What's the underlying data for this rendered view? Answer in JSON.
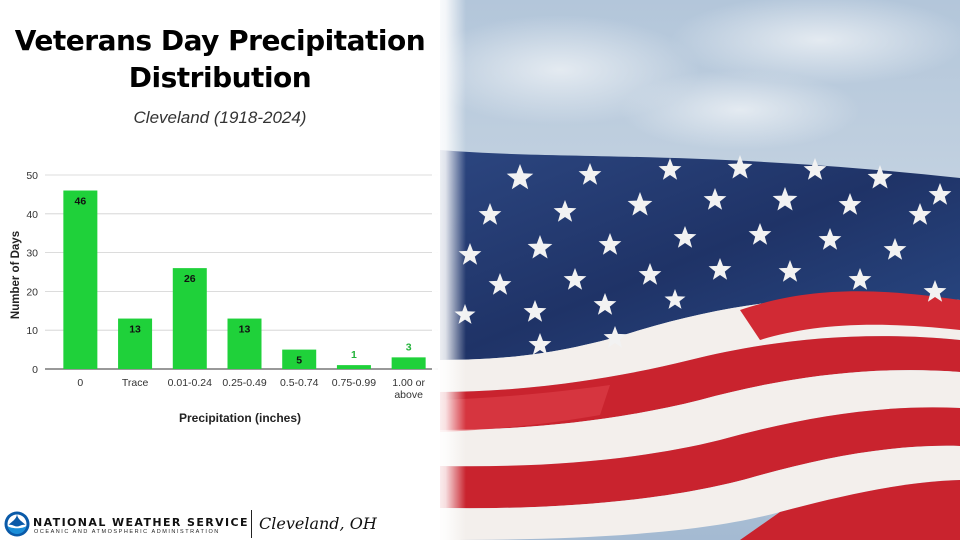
{
  "header": {
    "title_line1": "Veterans Day Precipitation",
    "title_line2": "Distribution",
    "subtitle": "Cleveland (1918-2024)"
  },
  "footer": {
    "agency": "NATIONAL WEATHER SERVICE",
    "agency_sub": "OCEANIC AND ATMOSPHERIC ADMINISTRATION",
    "office": "Cleveland, OH",
    "logo_icon": "noaa-logo-icon"
  },
  "photo": {
    "subject": "american-flag-icon",
    "colors": {
      "sky": "#a9bfd6",
      "field": "#223a72",
      "red": "#c9232e",
      "white": "#f4f1ee"
    }
  },
  "chart_data": {
    "type": "bar",
    "categories": [
      "0",
      "Trace",
      "0.01-0.24",
      "0.25-0.49",
      "0.5-0.74",
      "0.75-0.99",
      "1.00 or above"
    ],
    "values": [
      46,
      13,
      26,
      13,
      5,
      1,
      3
    ],
    "data_labels": [
      "46",
      "13",
      "26",
      "13",
      "5",
      "1",
      "3"
    ],
    "title": "",
    "xlabel": "Precipitation (inches)",
    "ylabel": "Number of Days",
    "ylim": [
      0,
      50
    ],
    "yticks": [
      "0",
      "10",
      "20",
      "30",
      "40",
      "50"
    ],
    "grid": true,
    "colors": {
      "bar": "#1fd13a",
      "label_inside": "#111111",
      "label_outside": "#22b33a",
      "grid": "#d0d0d0"
    }
  }
}
